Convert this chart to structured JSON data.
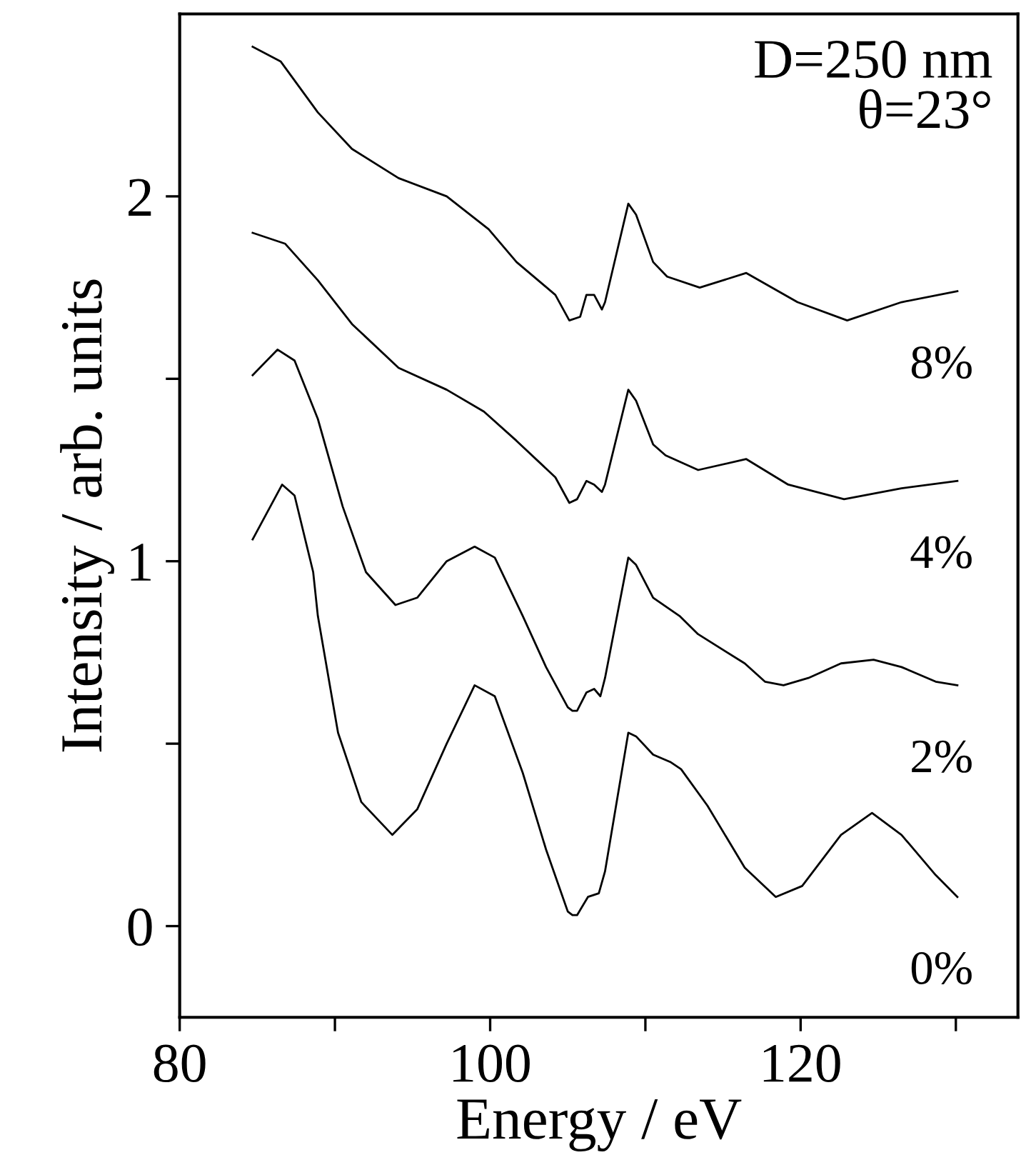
{
  "chart_data": {
    "type": "line",
    "xlabel": "Energy / eV",
    "ylabel": "Intensity / arb. units",
    "annotations": [
      "D=250 nm\nθ=23°"
    ],
    "xlim": [
      80,
      134
    ],
    "ylim": [
      -0.25,
      2.5
    ],
    "xticks": [
      80,
      {
        "value": 90,
        "label": null
      },
      100,
      {
        "value": 110,
        "label": null
      },
      120,
      {
        "value": 130,
        "label": null
      }
    ],
    "yticks": [
      0,
      {
        "value": 0.5,
        "label": null
      },
      1,
      {
        "value": 1.5,
        "label": null
      },
      2
    ],
    "grid": false,
    "legend": false,
    "marker": "none",
    "line_style": "solid",
    "series": [
      {
        "name": "8%",
        "color": "#000000",
        "x": [
          84.7,
          86.5,
          88.9,
          91.1,
          94.1,
          97.2,
          99.9,
          101.7,
          104.2,
          105.1,
          105.8,
          106.2,
          106.7,
          107.2,
          107.4,
          108.9,
          109.4,
          110.5,
          111.4,
          113.5,
          116.5,
          119.8,
          123.0,
          126.5,
          130.1
        ],
        "values": [
          2.41,
          2.37,
          2.23,
          2.13,
          2.05,
          2.0,
          1.91,
          1.82,
          1.73,
          1.66,
          1.67,
          1.73,
          1.73,
          1.69,
          1.71,
          1.98,
          1.95,
          1.82,
          1.78,
          1.75,
          1.79,
          1.71,
          1.66,
          1.71,
          1.74
        ]
      },
      {
        "name": "4%",
        "color": "#000000",
        "x": [
          84.7,
          86.8,
          88.9,
          91.1,
          94.1,
          97.2,
          99.6,
          101.7,
          104.2,
          105.1,
          105.6,
          106.2,
          106.7,
          107.2,
          107.4,
          108.9,
          109.4,
          110.5,
          111.3,
          113.4,
          116.5,
          119.2,
          122.8,
          126.5,
          130.1
        ],
        "values": [
          1.9,
          1.87,
          1.77,
          1.65,
          1.53,
          1.47,
          1.41,
          1.33,
          1.23,
          1.16,
          1.17,
          1.22,
          1.21,
          1.19,
          1.21,
          1.47,
          1.44,
          1.32,
          1.29,
          1.25,
          1.28,
          1.21,
          1.17,
          1.2,
          1.22
        ]
      },
      {
        "name": "2%",
        "color": "#000000",
        "x": [
          84.7,
          86.3,
          87.4,
          88.9,
          90.5,
          92.0,
          93.9,
          95.3,
          97.2,
          99.0,
          100.3,
          102.1,
          103.6,
          105.0,
          105.3,
          105.6,
          106.2,
          106.7,
          107.1,
          107.4,
          108.9,
          109.4,
          110.5,
          112.2,
          113.4,
          116.4,
          117.7,
          118.9,
          120.5,
          122.6,
          124.7,
          126.5,
          128.7,
          130.1
        ],
        "values": [
          1.51,
          1.58,
          1.55,
          1.39,
          1.15,
          0.97,
          0.88,
          0.9,
          1.0,
          1.04,
          1.01,
          0.85,
          0.71,
          0.6,
          0.59,
          0.59,
          0.64,
          0.65,
          0.63,
          0.68,
          1.01,
          0.99,
          0.9,
          0.85,
          0.8,
          0.72,
          0.67,
          0.66,
          0.68,
          0.72,
          0.73,
          0.71,
          0.67,
          0.66
        ]
      },
      {
        "name": "0%",
        "color": "#000000",
        "x": [
          84.7,
          86.6,
          87.4,
          88.6,
          88.9,
          90.2,
          91.7,
          93.7,
          95.3,
          97.2,
          99.0,
          100.3,
          102.1,
          103.6,
          105.0,
          105.3,
          105.6,
          106.3,
          107.0,
          107.4,
          108.9,
          109.4,
          110.5,
          111.6,
          112.3,
          114.0,
          116.4,
          118.4,
          120.1,
          122.6,
          124.6,
          126.5,
          128.7,
          130.1
        ],
        "values": [
          1.06,
          1.21,
          1.18,
          0.97,
          0.85,
          0.53,
          0.34,
          0.25,
          0.32,
          0.5,
          0.66,
          0.63,
          0.42,
          0.21,
          0.04,
          0.03,
          0.03,
          0.08,
          0.09,
          0.15,
          0.53,
          0.52,
          0.47,
          0.45,
          0.43,
          0.33,
          0.16,
          0.08,
          0.11,
          0.25,
          0.31,
          0.25,
          0.14,
          0.08
        ]
      }
    ]
  }
}
